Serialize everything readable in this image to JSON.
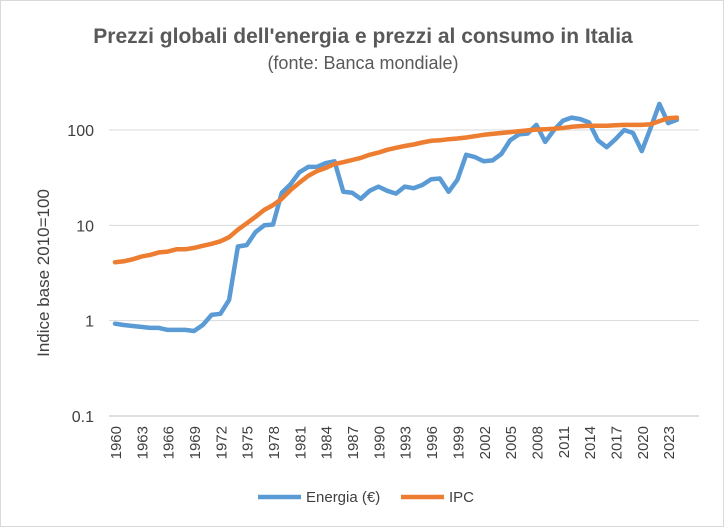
{
  "chart_data": {
    "type": "line",
    "title": "Prezzi globali dell'energia e prezzi al consumo  in Italia",
    "subtitle": "(fonte: Banca mondiale)",
    "xlabel": "",
    "ylabel": "Indice base 2010=100",
    "yscale": "log",
    "ylim": [
      0.1,
      300
    ],
    "xlim": [
      1960,
      2024
    ],
    "yticks": [
      0.1,
      1,
      10,
      100
    ],
    "ytick_labels": [
      "0.1",
      "1",
      "10",
      "100"
    ],
    "xticks": [
      "1960",
      "1963",
      "1966",
      "1969",
      "1972",
      "1975",
      "1978",
      "1981",
      "1984",
      "1987",
      "1990",
      "1993",
      "1996",
      "1999",
      "2002",
      "2005",
      "2008",
      "2011",
      "2014",
      "2017",
      "2020",
      "2023"
    ],
    "grid": "horizontal",
    "legend_position": "bottom",
    "x": [
      1960,
      1961,
      1962,
      1963,
      1964,
      1965,
      1966,
      1967,
      1968,
      1969,
      1970,
      1971,
      1972,
      1973,
      1974,
      1975,
      1976,
      1977,
      1978,
      1979,
      1980,
      1981,
      1982,
      1983,
      1984,
      1985,
      1986,
      1987,
      1988,
      1989,
      1990,
      1991,
      1992,
      1993,
      1994,
      1995,
      1996,
      1997,
      1998,
      1999,
      2000,
      2001,
      2002,
      2003,
      2004,
      2005,
      2006,
      2007,
      2008,
      2009,
      2010,
      2011,
      2012,
      2013,
      2014,
      2015,
      2016,
      2017,
      2018,
      2019,
      2020,
      2021,
      2022,
      2023,
      2024
    ],
    "series": [
      {
        "name": "Energia (€)",
        "color": "#5b9bd5",
        "values": [
          0.93,
          0.9,
          0.88,
          0.86,
          0.84,
          0.84,
          0.8,
          0.8,
          0.8,
          0.78,
          0.9,
          1.15,
          1.18,
          1.65,
          6.0,
          6.2,
          8.5,
          10.0,
          10.2,
          22,
          27,
          36,
          41,
          41,
          45,
          47,
          22.5,
          22,
          19,
          23,
          25.5,
          23,
          21.5,
          25.5,
          24.5,
          26.5,
          30.5,
          31,
          22.5,
          30,
          55,
          52,
          47,
          48,
          56,
          78,
          90,
          92,
          113,
          75,
          100,
          125,
          135,
          130,
          120,
          78,
          66,
          80,
          100,
          93,
          60,
          105,
          188,
          118,
          128
        ]
      },
      {
        "name": "IPC",
        "color": "#ed7d31",
        "values": [
          4.1,
          4.2,
          4.4,
          4.7,
          4.9,
          5.2,
          5.3,
          5.6,
          5.6,
          5.8,
          6.1,
          6.4,
          6.8,
          7.5,
          9.0,
          10.5,
          12.3,
          14.5,
          16.3,
          19,
          23.5,
          28,
          33,
          37,
          40,
          44,
          46,
          48.5,
          51,
          55,
          58,
          62,
          65,
          68,
          70.5,
          74,
          77,
          78,
          80,
          81.5,
          83.5,
          86,
          89,
          91,
          93,
          95,
          97,
          99,
          101,
          102,
          103,
          105,
          108,
          110,
          111,
          111,
          111,
          112,
          113,
          113,
          113,
          115,
          124,
          133,
          135
        ]
      }
    ]
  }
}
